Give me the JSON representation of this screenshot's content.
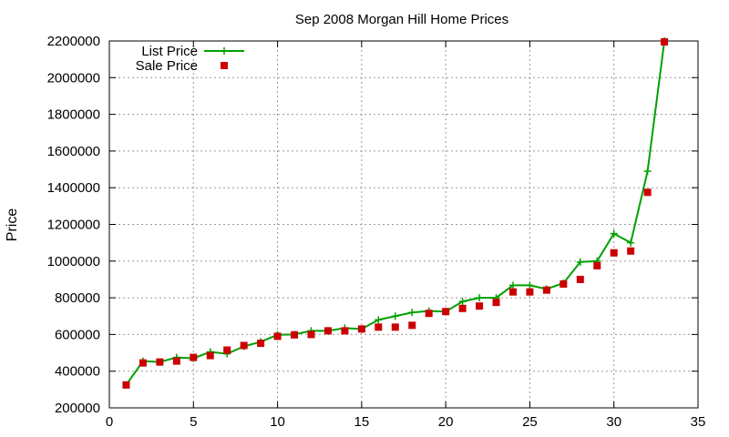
{
  "chart_data": {
    "type": "line",
    "title": "Sep 2008 Morgan Hill Home Prices",
    "xlabel": "",
    "ylabel": "Price",
    "xlim": [
      0,
      35
    ],
    "ylim": [
      200000,
      2200000
    ],
    "xticks": [
      0,
      5,
      10,
      15,
      20,
      25,
      30,
      35
    ],
    "yticks": [
      200000,
      400000,
      600000,
      800000,
      1000000,
      1200000,
      1400000,
      1600000,
      1800000,
      2000000,
      2200000
    ],
    "grid": true,
    "legend_position": "top-left",
    "series": [
      {
        "name": "List Price",
        "style": "linespoints",
        "color": "#00a000",
        "x": [
          1,
          2,
          3,
          4,
          5,
          6,
          7,
          8,
          9,
          10,
          11,
          12,
          13,
          14,
          15,
          16,
          17,
          18,
          19,
          20,
          21,
          22,
          23,
          24,
          25,
          26,
          27,
          28,
          29,
          30,
          31,
          32,
          33
        ],
        "y": [
          325000,
          455000,
          450000,
          475000,
          470000,
          505000,
          495000,
          535000,
          560000,
          598000,
          600000,
          620000,
          620000,
          635000,
          630000,
          680000,
          700000,
          720000,
          728000,
          725000,
          780000,
          800000,
          800000,
          868000,
          868000,
          848000,
          880000,
          995000,
          1000000,
          1150000,
          1100000,
          1490000,
          2200000
        ]
      },
      {
        "name": "Sale Price",
        "style": "points",
        "color": "#cc0000",
        "x": [
          1,
          2,
          3,
          4,
          5,
          6,
          7,
          8,
          9,
          10,
          11,
          12,
          13,
          14,
          15,
          16,
          17,
          18,
          19,
          20,
          21,
          22,
          23,
          24,
          25,
          26,
          27,
          28,
          29,
          30,
          31,
          32,
          33
        ],
        "y": [
          325000,
          445000,
          450000,
          455000,
          475000,
          485000,
          515000,
          540000,
          552000,
          590000,
          598000,
          600000,
          620000,
          620000,
          630000,
          640000,
          640000,
          650000,
          715000,
          725000,
          742000,
          755000,
          775000,
          832000,
          832000,
          842000,
          875000,
          900000,
          975000,
          1045000,
          1055000,
          1375000,
          2195000
        ]
      }
    ]
  }
}
